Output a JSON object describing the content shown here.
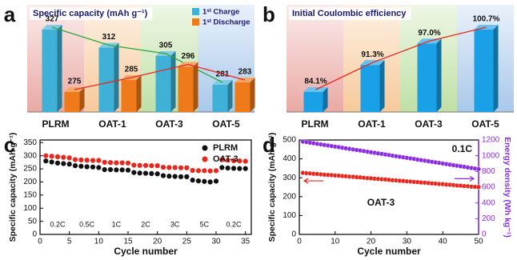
{
  "chart_data": [
    {
      "type": "bar",
      "panel_label": "a",
      "title": "Specific capacity (mAh g⁻¹)",
      "categories": [
        "PLRM",
        "OAT-1",
        "OAT-3",
        "OAT-5"
      ],
      "series": [
        {
          "name": "1ˢᵗ Charge",
          "color": "#3fb0d6",
          "line_color": "#2aa83a",
          "values": [
            327,
            312,
            305,
            281
          ]
        },
        {
          "name": "1ˢᵗ Discharge",
          "color": "#ee7a1a",
          "line_color": "#e8261c",
          "values": [
            275,
            285,
            296,
            283
          ]
        }
      ]
    },
    {
      "type": "bar",
      "panel_label": "b",
      "title": "Initial Coulombic efficiency",
      "categories": [
        "PLRM",
        "OAT-1",
        "OAT-3",
        "OAT-5"
      ],
      "series": [
        {
          "color": "#1aa0e6",
          "line_color": "#e8261c",
          "values": [
            84.1,
            91.3,
            97.0,
            100.7
          ],
          "value_labels": [
            "84.1%",
            "91.3%",
            "97.0%",
            "100.7%"
          ]
        }
      ]
    },
    {
      "type": "scatter",
      "panel_label": "c",
      "xlabel": "Cycle number",
      "ylabel": "Specific capacity (mAh g⁻¹)",
      "x": [
        1,
        2,
        3,
        4,
        5,
        6,
        7,
        8,
        9,
        10,
        11,
        12,
        13,
        14,
        15,
        16,
        17,
        18,
        19,
        20,
        21,
        22,
        23,
        24,
        25,
        26,
        27,
        28,
        29,
        30,
        31,
        32,
        33,
        34,
        35
      ],
      "series": [
        {
          "name": "PLRM",
          "color": "#111111",
          "values": [
            280,
            276,
            272,
            270,
            268,
            262,
            260,
            258,
            257,
            255,
            247,
            247,
            246,
            246,
            245,
            236,
            234,
            233,
            232,
            231,
            224,
            222,
            221,
            220,
            220,
            207,
            204,
            202,
            200,
            203,
            255,
            253,
            252,
            251,
            251
          ]
        },
        {
          "name": "OAT-3",
          "color": "#e8261c",
          "values": [
            300,
            298,
            296,
            294,
            292,
            285,
            284,
            283,
            282,
            282,
            275,
            274,
            273,
            273,
            272,
            264,
            263,
            263,
            262,
            262,
            256,
            255,
            255,
            254,
            254,
            244,
            243,
            243,
            242,
            243,
            285,
            283,
            281,
            280,
            279
          ]
        }
      ],
      "annotations": [
        "0.2C",
        "0.5C",
        "1C",
        "2C",
        "3C",
        "5C",
        "0.2C"
      ],
      "xlim": [
        0,
        36
      ],
      "xticks": [
        0,
        5,
        10,
        15,
        20,
        25,
        30,
        35
      ],
      "ylim": [
        0,
        360
      ],
      "yticks": [
        0,
        50,
        100,
        150,
        200,
        250,
        300,
        350
      ],
      "legend": "upper right"
    },
    {
      "type": "scatter",
      "panel_label": "d",
      "xlabel": "Cycle number",
      "ylabel": "Specific capacity (mAh g⁻¹)",
      "y2label": "Energy density (Wh kg⁻¹)",
      "x": [
        1,
        2,
        3,
        4,
        5,
        6,
        7,
        8,
        9,
        10,
        11,
        12,
        13,
        14,
        15,
        16,
        17,
        18,
        19,
        20,
        21,
        22,
        23,
        24,
        25,
        26,
        27,
        28,
        29,
        30,
        31,
        32,
        33,
        34,
        35,
        36,
        37,
        38,
        39,
        40,
        41,
        42,
        43,
        44,
        45,
        46,
        47,
        48,
        49,
        50
      ],
      "series": [
        {
          "color": "#e8261c",
          "values": [
            326,
            324,
            323,
            321,
            320,
            318,
            316,
            315,
            314,
            312,
            311,
            309,
            308,
            306,
            305,
            303,
            302,
            300,
            298,
            297,
            295,
            294,
            292,
            291,
            289,
            287,
            286,
            284,
            283,
            281,
            280,
            278,
            277,
            275,
            274,
            272,
            270,
            269,
            267,
            266,
            264,
            263,
            261,
            259,
            258,
            256,
            255,
            253,
            252,
            251
          ]
        },
        {
          "color": "#8a2be2",
          "axis": "y2",
          "values": [
            1180,
            1173,
            1166,
            1159,
            1151,
            1144,
            1137,
            1130,
            1123,
            1116,
            1109,
            1101,
            1094,
            1087,
            1080,
            1073,
            1066,
            1059,
            1051,
            1044,
            1037,
            1030,
            1023,
            1016,
            1009,
            1001,
            994,
            987,
            980,
            973,
            966,
            959,
            951,
            944,
            937,
            930,
            923,
            916,
            909,
            901,
            894,
            887,
            880,
            873,
            866,
            859,
            851,
            844,
            837,
            830
          ]
        }
      ],
      "annotations": [
        "0.1C",
        "OAT-3"
      ],
      "xlim": [
        0,
        50
      ],
      "xticks": [
        0,
        10,
        20,
        30,
        40,
        50
      ],
      "ylim": [
        0,
        500
      ],
      "yticks": [
        0,
        100,
        200,
        300,
        400,
        500
      ],
      "y2lim": [
        0,
        1200
      ],
      "y2ticks": [
        0,
        200,
        400,
        600,
        800,
        1000,
        1200
      ]
    }
  ]
}
